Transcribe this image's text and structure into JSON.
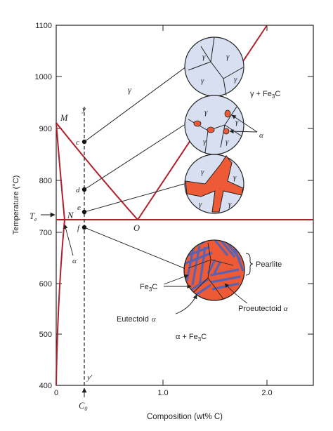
{
  "axes": {
    "ylabel": "Temperature (°C)",
    "xlabel": "Composition (wt% C)",
    "y_ticks": [
      "400",
      "500",
      "600",
      "700",
      "800",
      "900",
      "1000",
      "1100"
    ],
    "x_ticks": [
      "0",
      "1.0",
      "2.0"
    ],
    "te_label": "T",
    "te_sub": "e",
    "c0_label": "C",
    "c0_sub": "0"
  },
  "regions": {
    "gamma": "γ",
    "gamma_fe3c": "γ + Fe",
    "alpha_fe3c": "α + Fe",
    "fe3c_sub": "3",
    "fe3c_tail": "C",
    "alpha": "α"
  },
  "points": {
    "M": "M",
    "N": "N",
    "O": "O",
    "c": "c",
    "d": "d",
    "e": "e",
    "f": "f",
    "y": "y",
    "y_prime": "y′"
  },
  "micro": {
    "circle1": [
      "γ",
      "γ",
      "γ",
      "γ"
    ],
    "circle2": [
      "γ",
      "γ",
      "γ",
      "γ",
      "α"
    ],
    "circle3": [
      "γ",
      "γ",
      "γ",
      "γ"
    ],
    "pearlite": "Pearlite",
    "fe3c": "Fe",
    "fe3c_sub": "3",
    "fe3c_tail": "C",
    "proeutectoid": "Proeutectoid",
    "eutectoid": "Eutectoid",
    "alpha": "α"
  },
  "colors": {
    "phase_line": "#b0202a",
    "grain_fill": "#d7dff0",
    "ferrite": "#ee5a36",
    "cementite": "#5b62b0"
  }
}
